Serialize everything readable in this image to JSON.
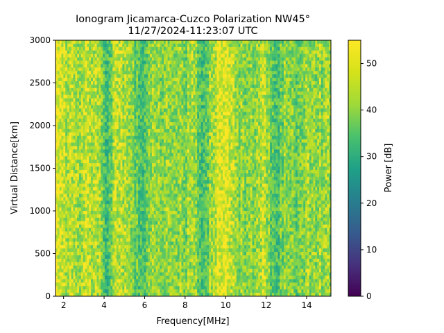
{
  "chart_data": {
    "type": "heatmap",
    "title": "Ionogram Jicamarca-Cuzco Polarization NW45°",
    "subtitle": "11/27/2024-11:23:07 UTC",
    "xlabel": "Frequency[MHz]",
    "ylabel": "Virtual Distance[km]",
    "xlim": [
      1.6,
      15.2
    ],
    "ylim": [
      0,
      3000
    ],
    "x_ticks": [
      2,
      4,
      6,
      8,
      10,
      12,
      14
    ],
    "x_tick_labels": [
      "2",
      "4",
      "6",
      "8",
      "10",
      "12",
      "14"
    ],
    "y_ticks": [
      0,
      500,
      1000,
      1500,
      2000,
      2500,
      3000
    ],
    "y_tick_labels": [
      "0",
      "500",
      "1000",
      "1500",
      "2000",
      "2500",
      "3000"
    ],
    "colorbar": {
      "label": "Power [dB]",
      "range": [
        0,
        55
      ],
      "ticks": [
        0,
        10,
        20,
        30,
        40,
        50
      ],
      "tick_labels": [
        "0",
        "10",
        "20",
        "30",
        "40",
        "50"
      ],
      "colormap": "viridis"
    },
    "frequency_power_profile": [
      {
        "f": 1.6,
        "power": 52
      },
      {
        "f": 1.8,
        "power": 53
      },
      {
        "f": 2.0,
        "power": 52
      },
      {
        "f": 2.2,
        "power": 48
      },
      {
        "f": 2.5,
        "power": 49
      },
      {
        "f": 2.8,
        "power": 46
      },
      {
        "f": 3.0,
        "power": 50
      },
      {
        "f": 3.4,
        "power": 50
      },
      {
        "f": 3.8,
        "power": 46
      },
      {
        "f": 4.1,
        "power": 38
      },
      {
        "f": 4.3,
        "power": 40
      },
      {
        "f": 4.6,
        "power": 50
      },
      {
        "f": 5.0,
        "power": 48
      },
      {
        "f": 5.4,
        "power": 46
      },
      {
        "f": 5.8,
        "power": 38
      },
      {
        "f": 6.0,
        "power": 39
      },
      {
        "f": 6.4,
        "power": 47
      },
      {
        "f": 6.8,
        "power": 45
      },
      {
        "f": 7.2,
        "power": 45
      },
      {
        "f": 7.6,
        "power": 47
      },
      {
        "f": 8.0,
        "power": 45
      },
      {
        "f": 8.4,
        "power": 47
      },
      {
        "f": 8.8,
        "power": 40
      },
      {
        "f": 9.0,
        "power": 39
      },
      {
        "f": 9.3,
        "power": 47
      },
      {
        "f": 9.7,
        "power": 53
      },
      {
        "f": 10.0,
        "power": 53
      },
      {
        "f": 10.3,
        "power": 48
      },
      {
        "f": 10.8,
        "power": 45
      },
      {
        "f": 11.2,
        "power": 45
      },
      {
        "f": 11.6,
        "power": 46
      },
      {
        "f": 11.9,
        "power": 52
      },
      {
        "f": 12.2,
        "power": 42
      },
      {
        "f": 12.5,
        "power": 38
      },
      {
        "f": 12.9,
        "power": 45
      },
      {
        "f": 13.3,
        "power": 46
      },
      {
        "f": 13.6,
        "power": 42
      },
      {
        "f": 13.9,
        "power": 46
      },
      {
        "f": 14.3,
        "power": 47
      },
      {
        "f": 14.7,
        "power": 46
      },
      {
        "f": 15.2,
        "power": 46
      }
    ],
    "notes": "Power is near-constant along virtual distance; vertical banding by frequency."
  }
}
